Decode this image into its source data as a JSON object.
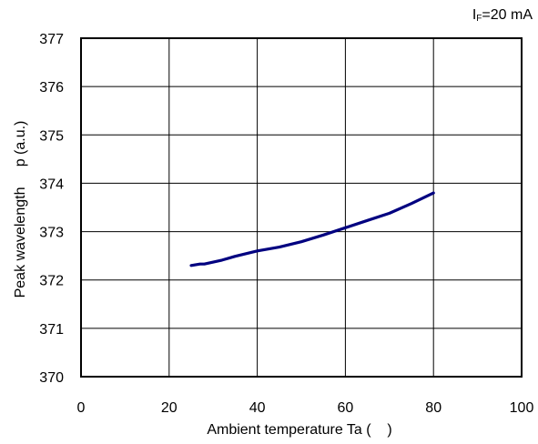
{
  "chart_data": {
    "type": "line",
    "condition": {
      "symbol": "I",
      "subscript": "F",
      "value": "=20 mA"
    },
    "xlabel": "Ambient temperature Ta (    )",
    "ylabel": "Peak wavelength     p (a.u.)",
    "xlim": [
      0,
      100
    ],
    "ylim": [
      370,
      377
    ],
    "xticks": [
      "0",
      "20",
      "40",
      "60",
      "80",
      "100"
    ],
    "yticks": [
      "370",
      "371",
      "372",
      "373",
      "374",
      "375",
      "376",
      "377"
    ],
    "grid": true,
    "line_color": "#000080",
    "series": [
      {
        "x": [
          25,
          27,
          28,
          30,
          32,
          35,
          40,
          45,
          50,
          55,
          60,
          65,
          70,
          75,
          80
        ],
        "values": [
          372.3,
          372.33,
          372.33,
          372.37,
          372.41,
          372.49,
          372.6,
          372.68,
          372.79,
          372.93,
          373.08,
          373.23,
          373.38,
          373.58,
          373.8
        ]
      }
    ]
  }
}
